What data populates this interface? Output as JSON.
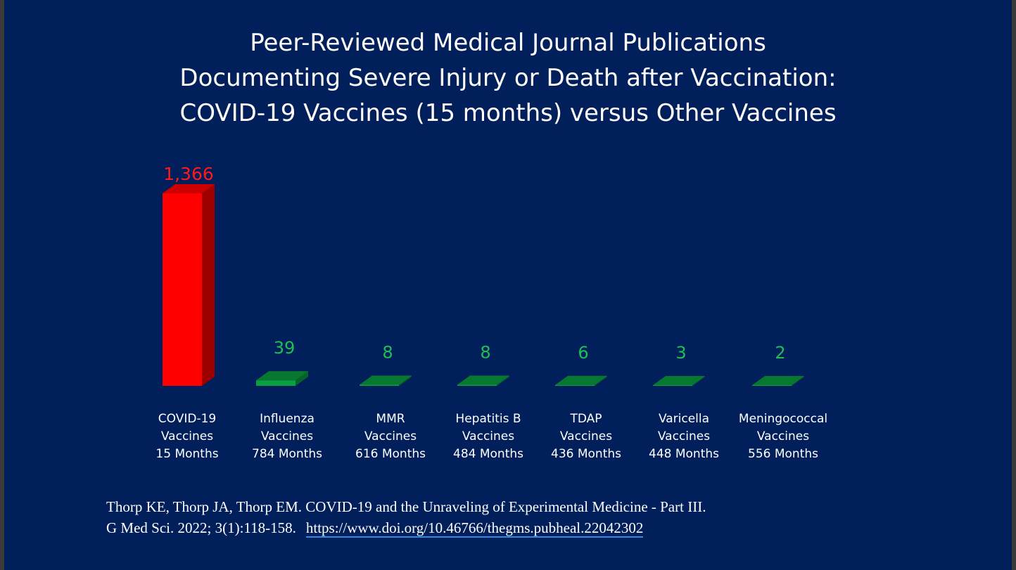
{
  "slide": {
    "title_lines": [
      "Peer-Reviewed Medical Journal Publications",
      "Documenting Severe Injury or Death after Vaccination:",
      "COVID-19 Vaccines (15 months) versus Other Vaccines"
    ],
    "citation_line1": "Thorp KE, Thorp JA, Thorp EM. COVID-19 and the Unraveling of Experimental Medicine - Part III.",
    "citation_line2": " G Med Sci. 2022; 3(1):118-158.",
    "citation_link": "https://www.doi.org/10.46766/thegms.pubheal.22042302"
  },
  "colors": {
    "background": "#001f5b",
    "covid_bar": "#ff0000",
    "covid_label": "#ff1a1a",
    "other_bar": "#0aa040",
    "other_label": "#1fbf55",
    "text": "#ffffff",
    "link_underline": "#2e8be0"
  },
  "chart_data": {
    "type": "bar",
    "style": "3d",
    "categories": [
      [
        "COVID-19",
        "Vaccines",
        "15 Months"
      ],
      [
        "Influenza",
        "Vaccines",
        "784 Months"
      ],
      [
        "MMR",
        "Vaccines",
        "616 Months"
      ],
      [
        "Hepatitis B",
        "Vaccines",
        "484 Months"
      ],
      [
        "TDAP",
        "Vaccines",
        "436 Months"
      ],
      [
        "Varicella",
        "Vaccines",
        "448 Months"
      ],
      [
        "Meningococcal",
        "Vaccines",
        "556 Months"
      ]
    ],
    "values": [
      1366,
      39,
      8,
      8,
      6,
      3,
      2
    ],
    "value_labels": [
      "1,366",
      "39",
      "8",
      "8",
      "6",
      "3",
      "2"
    ],
    "ylim": [
      0,
      1366
    ],
    "grid": false,
    "legend": false
  }
}
